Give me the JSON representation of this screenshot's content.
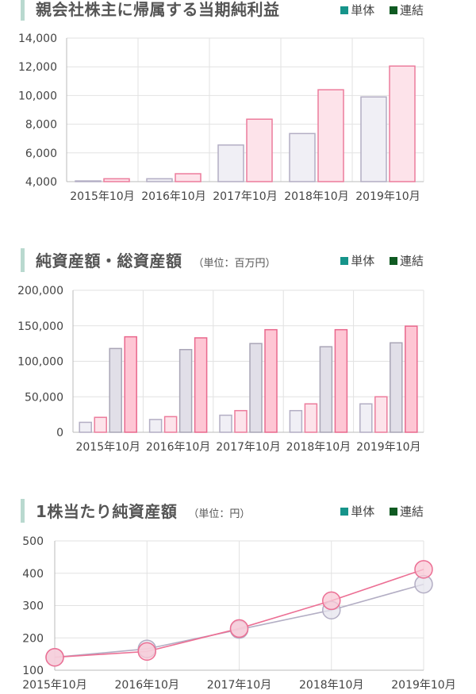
{
  "legend": {
    "single_label": "単体",
    "consolidated_label": "連結",
    "single_color": "#16948a",
    "consolidated_color": "#0f5a22"
  },
  "chart_data": [
    {
      "type": "bar",
      "title": "親会社株主に帰属する当期純利益",
      "unit": "",
      "categories": [
        "2015年10月",
        "2016年10月",
        "2017年10月",
        "2018年10月",
        "2019年10月"
      ],
      "series": [
        {
          "name": "単体",
          "values": [
            4050,
            4200,
            6550,
            7350,
            9900
          ]
        },
        {
          "name": "連結",
          "values": [
            4200,
            4550,
            8350,
            10400,
            12050
          ]
        }
      ],
      "ylim": [
        4000,
        14000
      ],
      "yticks": [
        4000,
        6000,
        8000,
        10000,
        12000,
        14000
      ],
      "ytick_labels": [
        "4,000",
        "6,000",
        "8,000",
        "10,000",
        "12,000",
        "14,000"
      ],
      "grid": true
    },
    {
      "type": "bar",
      "title": "純資産額・総資産額",
      "unit": "（単位：百万円）",
      "categories": [
        "2015年10月",
        "2016年10月",
        "2017年10月",
        "2018年10月",
        "2019年10月"
      ],
      "series": [
        {
          "name": "純資産額 単体",
          "values": [
            14000,
            18000,
            24000,
            30500,
            40000
          ]
        },
        {
          "name": "純資産額 連結",
          "values": [
            21000,
            22000,
            30500,
            40000,
            50000
          ]
        },
        {
          "name": "総資産額 単体",
          "values": [
            118000,
            116500,
            125000,
            120500,
            126000
          ]
        },
        {
          "name": "総資産額 連結",
          "values": [
            134500,
            133000,
            144500,
            144500,
            149500
          ]
        }
      ],
      "ylim": [
        0,
        200000
      ],
      "yticks": [
        0,
        50000,
        100000,
        150000,
        200000
      ],
      "ytick_labels": [
        "0",
        "50,000",
        "100,000",
        "150,000",
        "200,000"
      ],
      "grid": true
    },
    {
      "type": "line",
      "title": "1株当たり純資産額",
      "unit": "（単位：円）",
      "categories": [
        "2015年10月",
        "2016年10月",
        "2017年10月",
        "2018年10月",
        "2019年10月"
      ],
      "series": [
        {
          "name": "単体",
          "values": [
            140,
            166,
            226,
            286,
            366
          ]
        },
        {
          "name": "連結",
          "values": [
            140,
            158,
            229,
            315,
            412
          ]
        }
      ],
      "ylim": [
        100,
        500
      ],
      "yticks": [
        100,
        200,
        300,
        400,
        500
      ],
      "ytick_labels": [
        "100",
        "200",
        "300",
        "400",
        "500"
      ],
      "grid": true
    }
  ]
}
